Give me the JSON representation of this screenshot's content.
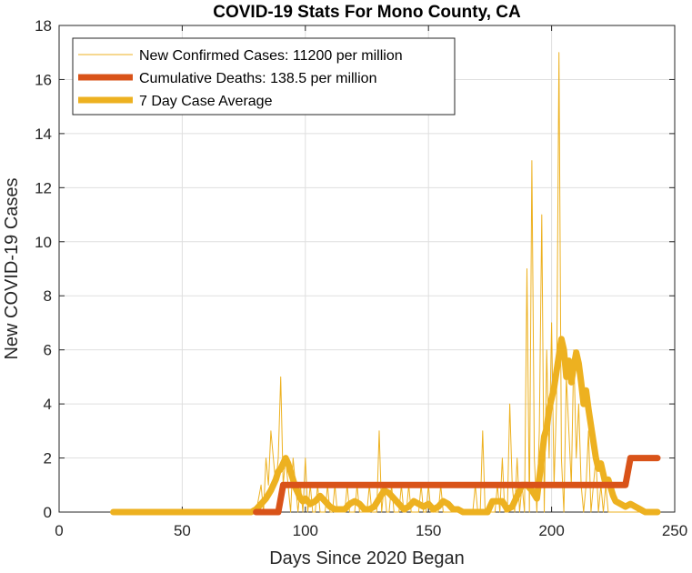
{
  "chart_data": {
    "type": "line",
    "title": "COVID-19 Stats For Mono County, CA",
    "xlabel": "Days Since 2020 Began",
    "ylabel": "New COVID-19 Cases",
    "xlim": [
      0,
      250
    ],
    "ylim": [
      0,
      18
    ],
    "xticks": [
      0,
      50,
      100,
      150,
      200,
      250
    ],
    "yticks": [
      0,
      2,
      4,
      6,
      8,
      10,
      12,
      14,
      16,
      18
    ],
    "grid": true,
    "legend_position": "top-left",
    "series": [
      {
        "name": "New Confirmed Cases: 11200 per million",
        "color": "#EDB120",
        "style": "thin",
        "x": [
          22,
          80,
          82,
          83,
          84,
          85,
          86,
          87,
          88,
          89,
          90,
          91,
          92,
          93,
          94,
          95,
          96,
          97,
          98,
          99,
          100,
          101,
          102,
          103,
          104,
          105,
          106,
          107,
          108,
          109,
          110,
          111,
          112,
          113,
          114,
          115,
          116,
          117,
          118,
          119,
          120,
          121,
          122,
          123,
          124,
          125,
          126,
          127,
          128,
          129,
          130,
          131,
          132,
          133,
          134,
          135,
          136,
          137,
          138,
          139,
          140,
          141,
          142,
          143,
          144,
          145,
          146,
          147,
          148,
          149,
          150,
          151,
          152,
          153,
          154,
          155,
          156,
          157,
          158,
          159,
          160,
          161,
          162,
          163,
          164,
          165,
          166,
          167,
          168,
          169,
          170,
          171,
          172,
          173,
          174,
          175,
          176,
          177,
          178,
          179,
          180,
          181,
          182,
          183,
          184,
          185,
          186,
          187,
          188,
          189,
          190,
          191,
          192,
          193,
          194,
          195,
          196,
          197,
          198,
          199,
          200,
          201,
          202,
          203,
          204,
          205,
          206,
          207,
          208,
          209,
          210,
          211,
          212,
          213,
          214,
          215,
          216,
          217,
          218,
          219,
          220,
          221,
          222,
          223,
          224,
          225,
          226,
          227,
          228,
          229,
          230,
          231,
          232,
          233,
          234,
          235,
          236,
          237,
          238,
          239,
          240,
          241,
          242,
          243
        ],
        "values": [
          0,
          0,
          1,
          0,
          2,
          1,
          3,
          2,
          1,
          2,
          5,
          1,
          2,
          1,
          0,
          2,
          1,
          0,
          1,
          0,
          2,
          0,
          1,
          0,
          0,
          1,
          0,
          0,
          0,
          1,
          0,
          0,
          1,
          0,
          0,
          0,
          0,
          1,
          0,
          0,
          0,
          1,
          0,
          0,
          0,
          0,
          1,
          0,
          0,
          0,
          3,
          0,
          1,
          0,
          0,
          1,
          0,
          0,
          0,
          1,
          0,
          0,
          1,
          0,
          0,
          0,
          0,
          1,
          0,
          0,
          1,
          0,
          0,
          0,
          0,
          1,
          0,
          0,
          0,
          0,
          0,
          0,
          0,
          0,
          0,
          0,
          0,
          0,
          0,
          1,
          0,
          0,
          3,
          0,
          0,
          0,
          0,
          0,
          1,
          0,
          2,
          0,
          0,
          4,
          1,
          0,
          2,
          0,
          1,
          0,
          9,
          0,
          13,
          2,
          0,
          3,
          11,
          0,
          6,
          2,
          7,
          1,
          4,
          17,
          2,
          0,
          5,
          3,
          1,
          6,
          2,
          4,
          1,
          0,
          1,
          3,
          0,
          1,
          2,
          0,
          1,
          0,
          1,
          0,
          0,
          0,
          0,
          0,
          0,
          0,
          0,
          0,
          0,
          0,
          0,
          0,
          0,
          0,
          0,
          0,
          0,
          0,
          0,
          0
        ]
      },
      {
        "name": "Cumulative Deaths: 138.5 per million",
        "color": "#D95319",
        "style": "thick",
        "x": [
          80,
          89,
          91,
          92,
          230,
          232,
          243
        ],
        "values": [
          0,
          0,
          1,
          1,
          1,
          2,
          2
        ]
      },
      {
        "name": "7 Day Case Average",
        "color": "#EDB120",
        "style": "thick",
        "x": [
          22,
          78,
          80,
          82,
          84,
          86,
          88,
          89,
          90,
          91,
          92,
          93,
          94,
          95,
          96,
          97,
          98,
          99,
          100,
          102,
          104,
          106,
          108,
          110,
          112,
          114,
          116,
          118,
          120,
          122,
          124,
          126,
          128,
          130,
          132,
          134,
          136,
          138,
          140,
          142,
          144,
          146,
          148,
          150,
          152,
          154,
          156,
          158,
          160,
          162,
          164,
          166,
          168,
          170,
          172,
          174,
          176,
          178,
          180,
          182,
          184,
          186,
          188,
          190,
          192,
          194,
          196,
          197,
          198,
          199,
          200,
          201,
          202,
          203,
          204,
          205,
          206,
          207,
          208,
          209,
          210,
          211,
          212,
          213,
          214,
          215,
          216,
          217,
          218,
          219,
          220,
          221,
          222,
          223,
          224,
          225,
          226,
          228,
          230,
          232,
          234,
          236,
          238,
          240,
          243
        ],
        "values": [
          0,
          0,
          0.1,
          0.3,
          0.5,
          0.8,
          1.2,
          1.5,
          1.6,
          1.8,
          2.0,
          1.8,
          1.5,
          1.2,
          0.9,
          0.7,
          0.5,
          0.4,
          0.5,
          0.3,
          0.4,
          0.6,
          0.4,
          0.2,
          0.1,
          0.1,
          0.1,
          0.3,
          0.4,
          0.3,
          0.1,
          0.1,
          0.2,
          0.5,
          0.8,
          0.7,
          0.5,
          0.3,
          0.1,
          0.2,
          0.4,
          0.3,
          0.2,
          0.3,
          0.1,
          0.2,
          0.4,
          0.3,
          0.1,
          0.1,
          0,
          0,
          0,
          0,
          0,
          0,
          0.4,
          0.4,
          0.4,
          0.1,
          0.2,
          0.6,
          1.0,
          1.0,
          0.8,
          0.5,
          2.0,
          2.8,
          3.1,
          3.8,
          4.2,
          4.6,
          5.2,
          5.8,
          6.4,
          6.0,
          5.0,
          5.6,
          4.8,
          5.4,
          5.9,
          5.5,
          4.8,
          4.0,
          4.5,
          3.8,
          3.2,
          2.6,
          2.0,
          1.6,
          1.8,
          1.4,
          1.0,
          1.2,
          0.9,
          0.6,
          0.4,
          0.3,
          0.2,
          0.3,
          0.2,
          0.1,
          0,
          0,
          0
        ]
      }
    ]
  }
}
